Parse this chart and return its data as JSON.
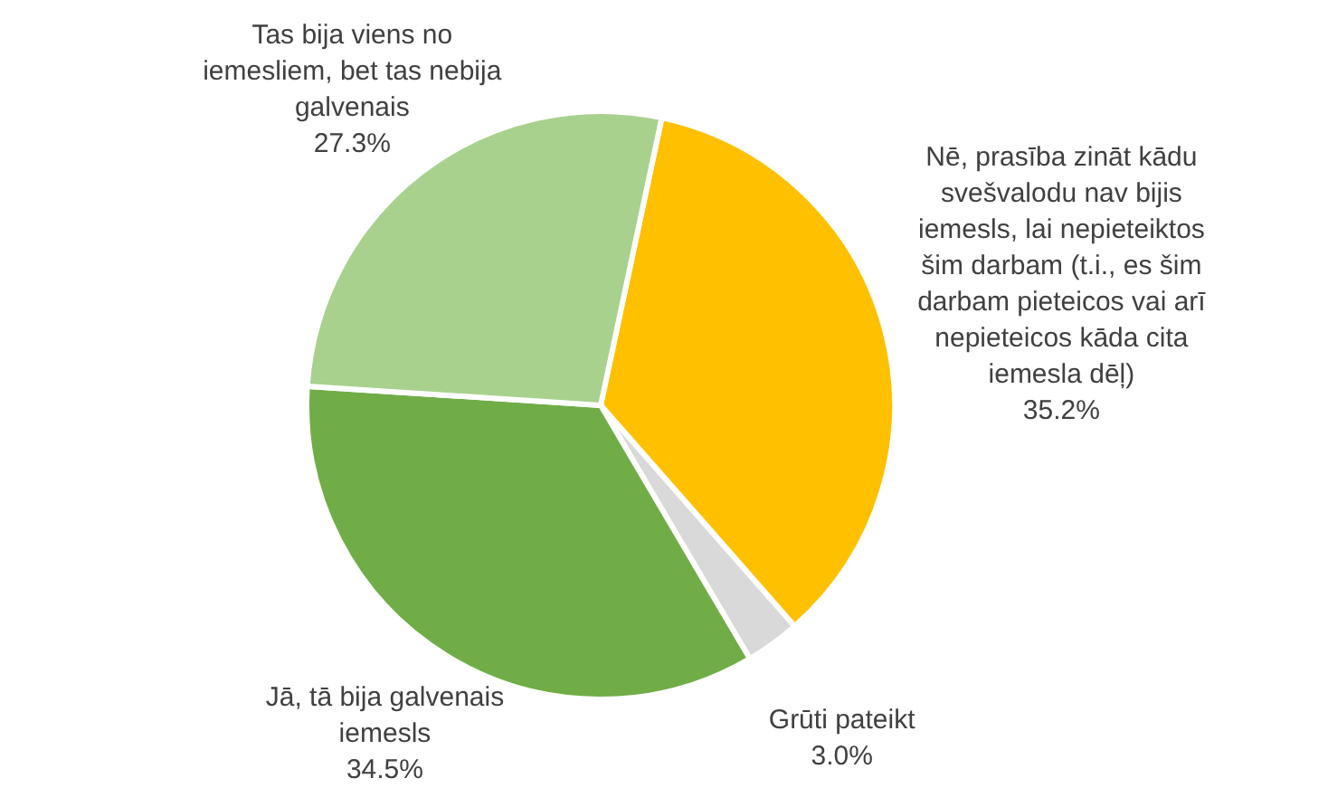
{
  "chart_data": {
    "type": "pie",
    "categories": [
      "Nē, prasība zināt kādu svešvalodu  nav bijis iemesls, lai nepieteiktos šim darbam (t.i., es šim darbam pieteicos vai arī nepieteicos kāda cita iemesla dēļ)",
      "Grūti pateikt",
      "Jā, tā bija galvenais iemesls",
      "Tas bija viens no iemesliem, bet tas nebija galvenais"
    ],
    "values": [
      35.2,
      3.0,
      34.5,
      27.3
    ],
    "value_labels": [
      "35.2%",
      "3.0%",
      "34.5%",
      "27.3%"
    ],
    "colors": [
      "#ffc000",
      "#d9d9d9",
      "#70ad47",
      "#a9d18e"
    ],
    "legend": false
  }
}
